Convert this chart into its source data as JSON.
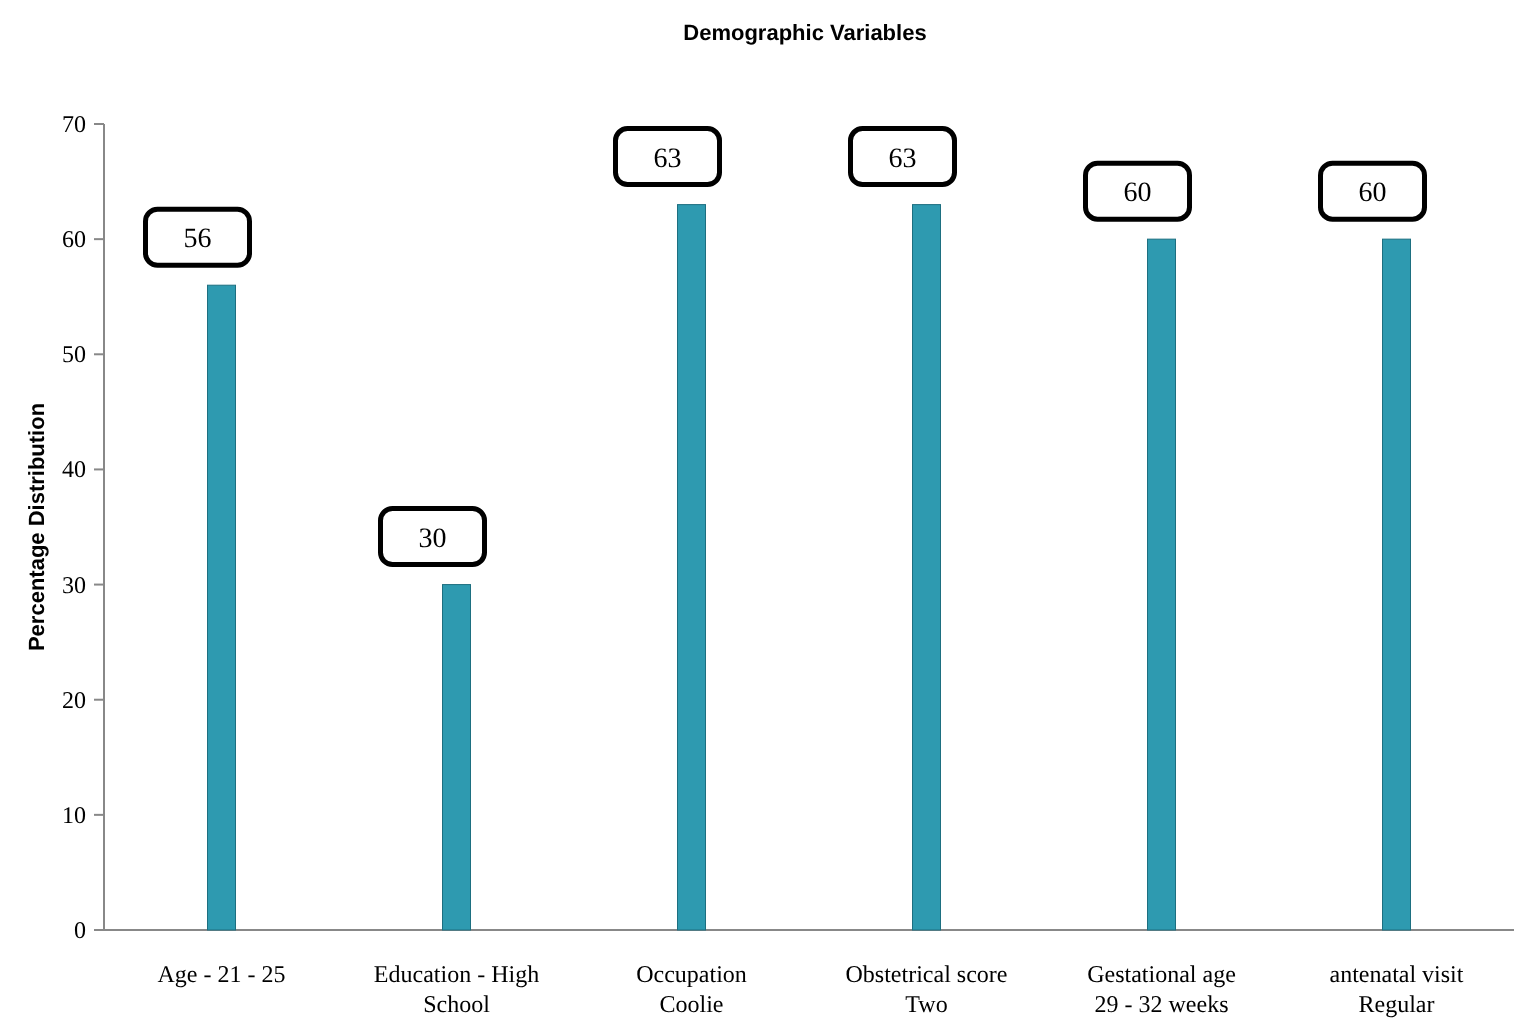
{
  "chart_data": {
    "type": "bar",
    "title": "Demographic Variables",
    "ylabel": "Percentage Distribution",
    "categories": [
      "Age - 21 - 25",
      "Education - High\nSchool",
      "Occupation\nCoolie",
      "Obstetrical score\nTwo",
      "Gestational age\n29 - 32 weeks",
      "antenatal visit\nRegular"
    ],
    "values": [
      56,
      30,
      63,
      63,
      60,
      60
    ],
    "color": "#2e9ab0",
    "ylim": [
      0,
      70
    ],
    "yticks": [
      0,
      10,
      20,
      30,
      40,
      50,
      60,
      70
    ],
    "data_labels": true
  }
}
